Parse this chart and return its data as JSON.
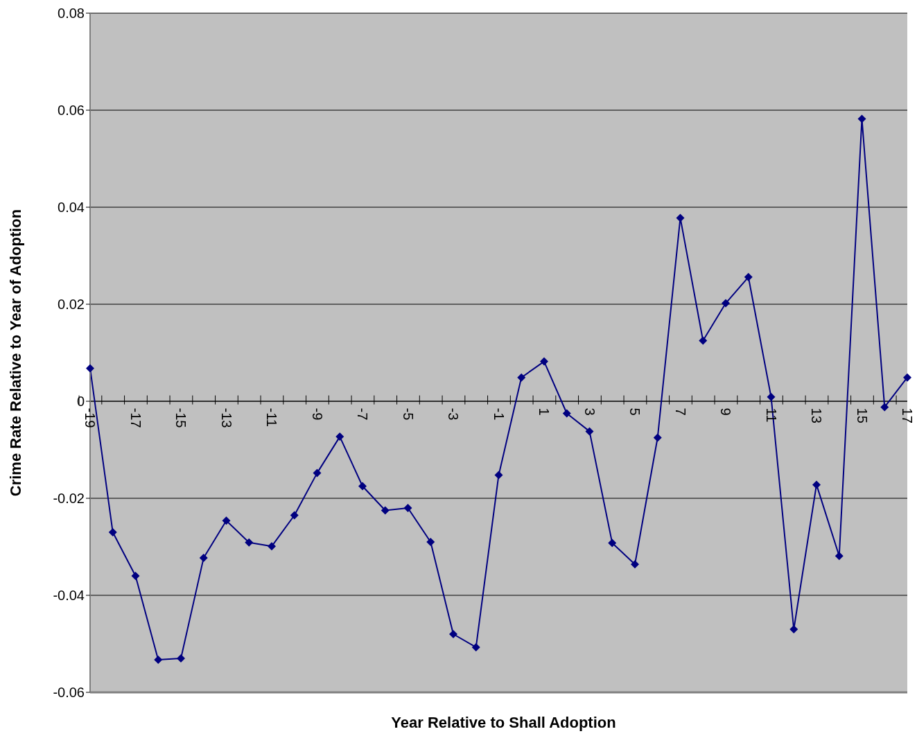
{
  "chart_data": {
    "type": "line",
    "xlabel": "Year Relative to Shall Adoption",
    "ylabel": "Crime Rate Relative to Year of Adoption",
    "categories": [
      "-19",
      null,
      "-17",
      null,
      "-15",
      null,
      "-13",
      null,
      "-11",
      null,
      "-9",
      null,
      "-7",
      null,
      "-5",
      null,
      "-3",
      null,
      "-1",
      null,
      "1",
      null,
      "3",
      null,
      "5",
      null,
      "7",
      null,
      "9",
      null,
      "11",
      null,
      "13",
      null,
      "15",
      null,
      "17"
    ],
    "series": [
      {
        "color": "#000080",
        "values": [
          0.0068,
          -0.027,
          -0.036,
          -0.0533,
          -0.053,
          -0.0323,
          -0.0246,
          -0.0291,
          -0.0299,
          -0.0235,
          -0.0148,
          -0.0073,
          -0.0175,
          -0.0225,
          -0.022,
          -0.029,
          -0.048,
          -0.0507,
          -0.0152,
          0.0049,
          0.0082,
          -0.0025,
          -0.0062,
          -0.0292,
          -0.0336,
          -0.0075,
          0.0378,
          0.0125,
          0.0202,
          0.0256,
          0.0009,
          -0.047,
          -0.0172,
          -0.0319,
          0.0582,
          -0.0012,
          0.0049
        ]
      }
    ],
    "ylim": [
      -0.06,
      0.08
    ],
    "yticks": [
      {
        "value": -0.06,
        "label": "-0.06"
      },
      {
        "value": -0.04,
        "label": "-0.04"
      },
      {
        "value": -0.02,
        "label": "-0.02"
      },
      0,
      {
        "value": 0.02,
        "label": "0.02"
      },
      {
        "value": 0.04,
        "label": "0.04"
      },
      {
        "value": 0.06,
        "label": "0.06"
      },
      {
        "value": 0.08,
        "label": "0.08"
      }
    ],
    "grid": "y",
    "marker": "diamond",
    "line_style": "solid"
  }
}
